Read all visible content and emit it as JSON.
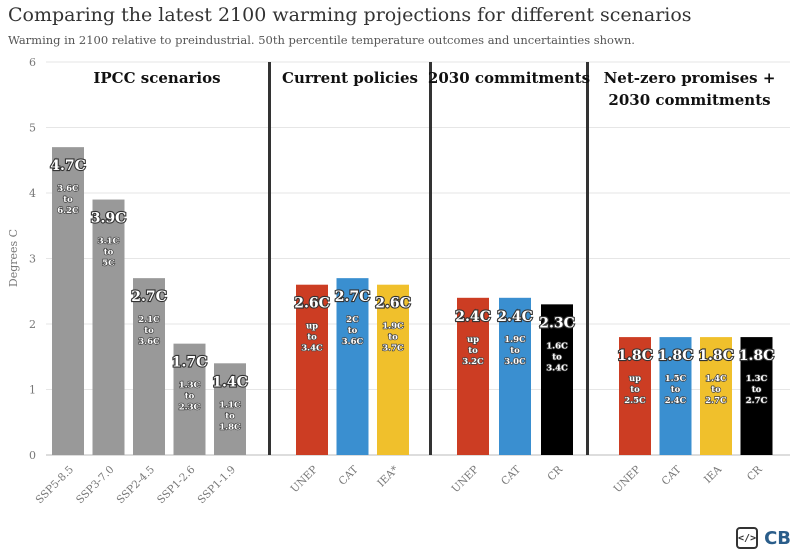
{
  "title": "Comparing the latest 2100 warming projections for different scenarios",
  "subtitle": "Warming in 2100 relative to preindustrial. 50th percentile temperature outcomes and uncertainties shown.",
  "brand": {
    "text": "CB",
    "icon": "code-brackets-icon"
  },
  "chart_data": {
    "type": "bar",
    "ylabel": "Degrees C",
    "xlabel": "",
    "ylim": [
      0,
      6
    ],
    "yticks": [
      0,
      1,
      2,
      3,
      4,
      5,
      6
    ],
    "grid": true,
    "groups": [
      {
        "name": "IPCC scenarios",
        "bars": [
          {
            "category": "SSP5-8.5",
            "value": 4.7,
            "label": "4.7C",
            "range": [
              "3.6C",
              "to",
              "6.2C"
            ],
            "color": "#999999"
          },
          {
            "category": "SSP3-7.0",
            "value": 3.9,
            "label": "3.9C",
            "range": [
              "3.1C",
              "to",
              "5C"
            ],
            "color": "#999999"
          },
          {
            "category": "SSP2-4.5",
            "value": 2.7,
            "label": "2.7C",
            "range": [
              "2.1C",
              "to",
              "3.6C"
            ],
            "color": "#999999"
          },
          {
            "category": "SSP1-2.6",
            "value": 1.7,
            "label": "1.7C",
            "range": [
              "1.3C",
              "to",
              "2.3C"
            ],
            "color": "#999999"
          },
          {
            "category": "SSP1-1.9",
            "value": 1.4,
            "label": "1.4C",
            "range": [
              "1.1C",
              "to",
              "1.8C"
            ],
            "color": "#999999"
          }
        ]
      },
      {
        "name": "Current policies",
        "bars": [
          {
            "category": "UNEP",
            "value": 2.6,
            "label": "2.6C",
            "range": [
              "up",
              "to",
              "3.4C"
            ],
            "color": "#cc3d23"
          },
          {
            "category": "CAT",
            "value": 2.7,
            "label": "2.7C",
            "range": [
              "2C",
              "to",
              "3.6C"
            ],
            "color": "#3a8fd0"
          },
          {
            "category": "IEA*",
            "value": 2.6,
            "label": "2.6C",
            "range": [
              "1.9C",
              "to",
              "3.7C"
            ],
            "color": "#f0c02c"
          }
        ]
      },
      {
        "name": "2030 commitments",
        "bars": [
          {
            "category": "UNEP",
            "value": 2.4,
            "label": "2.4C",
            "range": [
              "up",
              "to",
              "3.2C"
            ],
            "color": "#cc3d23"
          },
          {
            "category": "CAT",
            "value": 2.4,
            "label": "2.4C",
            "range": [
              "1.9C",
              "to",
              "3.0C"
            ],
            "color": "#3a8fd0"
          },
          {
            "category": "CR",
            "value": 2.3,
            "label": "2.3C",
            "range": [
              "1.6C",
              "to",
              "3.4C"
            ],
            "color": "#000000"
          }
        ]
      },
      {
        "name": "Net-zero promises +\n2030 commitments",
        "bars": [
          {
            "category": "UNEP",
            "value": 1.8,
            "label": "1.8C",
            "range": [
              "up",
              "to",
              "2.5C"
            ],
            "color": "#cc3d23"
          },
          {
            "category": "CAT",
            "value": 1.8,
            "label": "1.8C",
            "range": [
              "1.5C",
              "to",
              "2.4C"
            ],
            "color": "#3a8fd0"
          },
          {
            "category": "IEA",
            "value": 1.8,
            "label": "1.8C",
            "range": [
              "1.4C",
              "to",
              "2.7C"
            ],
            "color": "#f0c02c"
          },
          {
            "category": "CR",
            "value": 1.8,
            "label": "1.8C",
            "range": [
              "1.3C",
              "to",
              "2.7C"
            ],
            "color": "#000000"
          }
        ]
      }
    ]
  }
}
